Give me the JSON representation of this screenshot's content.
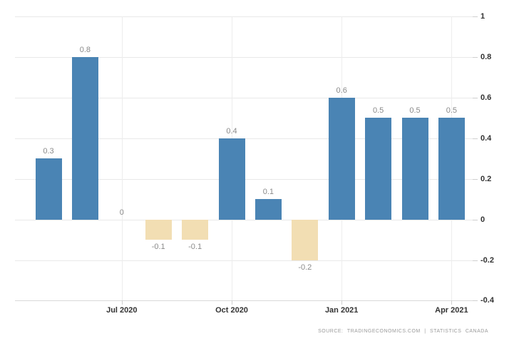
{
  "chart_data": {
    "type": "bar",
    "title": "",
    "xlabel": "",
    "ylabel": "",
    "values": [
      0.3,
      0.8,
      0,
      -0.1,
      -0.1,
      0.4,
      0.1,
      -0.2,
      0.6,
      0.5,
      0.5,
      0.5
    ],
    "bar_labels": [
      "0.3",
      "0.8",
      "0",
      "-0.1",
      "-0.1",
      "0.4",
      "0.1",
      "-0.2",
      "0.6",
      "0.5",
      "0.5",
      "0.5"
    ],
    "x_tick_labels": [
      "Jul 2020",
      "Oct 2020",
      "Jan 2021",
      "Apr 2021"
    ],
    "x_tick_bar_indices": [
      2,
      5,
      8,
      11
    ],
    "y_tick_values": [
      1,
      0.8,
      0.6,
      0.4,
      0.2,
      0,
      -0.2,
      -0.4
    ],
    "y_tick_labels": [
      "1",
      "0.8",
      "0.6",
      "0.4",
      "0.2",
      "0",
      "-0.2",
      "-0.4"
    ],
    "ylim": [
      -0.4,
      1
    ],
    "grid": true,
    "legend": "none",
    "colors": {
      "positive_bar": "#4A84B4",
      "negative_bar": "#F2DEB3",
      "data_label": "#8a8a8a",
      "axis_label": "#333333",
      "gridline": "#e9e9e9",
      "source_text": "#9b9b9b"
    },
    "source": "SOURCE: TRADINGECONOMICS.COM | STATISTICS CANADA"
  }
}
